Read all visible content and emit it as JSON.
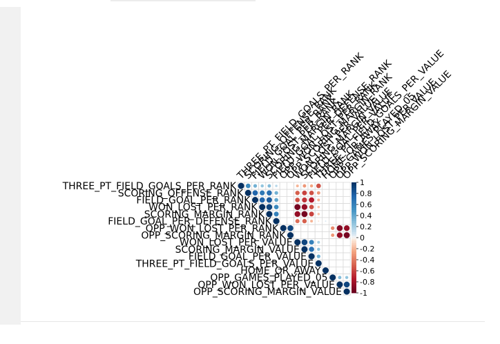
{
  "chart_data": {
    "type": "heatmap",
    "method": "circle",
    "layout": "upper-triangle",
    "variables": [
      "THREE_PT_FIELD_GOALS_PER_RANK",
      "SCORING_OFFENSE_RANK",
      "FIELD_GOAL_PER_RANK",
      "WON_LOST_PER_RANK",
      "SCORING_MARGIN_RANK",
      "FIELD_GOAL_PER_DEFENSE_RANK",
      "OPP_WON_LOST_PER_RANK",
      "OPP_SCORING_MARGIN_RANK",
      "WON_LOST_PER_VALUE",
      "SCORING_MARGIN_VALUE",
      "FIELD_GOAL_PER_VALUE",
      "THREE_PT_FIELD_GOALS_PER_VALUE",
      "HOME_OR_AWAY",
      "OPP_GAMES_PLAYED_05",
      "OPP_WON_LOST_PER_VALUE",
      "OPP_SCORING_MARGIN_VALUE"
    ],
    "matrix": [
      [
        1,
        0.55,
        0.35,
        0.25,
        0.3,
        0.15,
        0,
        0,
        -0.2,
        -0.3,
        -0.25,
        -0.55,
        0,
        0,
        0,
        0
      ],
      [
        0.55,
        1,
        0.75,
        0.65,
        0.7,
        0.35,
        0,
        0,
        -0.5,
        -0.6,
        -0.55,
        -0.3,
        0,
        0,
        0,
        0
      ],
      [
        0.35,
        0.75,
        1,
        0.75,
        0.8,
        0.4,
        0,
        0,
        -0.55,
        -0.65,
        -0.75,
        -0.2,
        0,
        0,
        0,
        0
      ],
      [
        0.25,
        0.65,
        0.75,
        1,
        0.9,
        0.55,
        0,
        0,
        -0.95,
        -0.85,
        -0.55,
        -0.15,
        0,
        0,
        0,
        0
      ],
      [
        0.3,
        0.7,
        0.8,
        0.9,
        1,
        0.6,
        0,
        0,
        -0.85,
        -0.95,
        -0.6,
        -0.15,
        0,
        0,
        0,
        0
      ],
      [
        0.15,
        0.35,
        0.4,
        0.55,
        0.6,
        1,
        0,
        0,
        -0.45,
        -0.5,
        -0.2,
        -0.05,
        0.05,
        0,
        0,
        0
      ],
      [
        0,
        0,
        0,
        0,
        0,
        0,
        1,
        0.9,
        0,
        0,
        0,
        0,
        0,
        -0.35,
        -0.9,
        -0.85
      ],
      [
        0,
        0,
        0,
        0,
        0,
        0,
        0.9,
        1,
        0,
        0,
        0,
        0,
        0,
        -0.3,
        -0.85,
        -0.95
      ],
      [
        -0.2,
        -0.5,
        -0.55,
        -0.95,
        -0.85,
        -0.45,
        0,
        0,
        1,
        0.9,
        0.6,
        0.2,
        0,
        0,
        0,
        0
      ],
      [
        -0.3,
        -0.6,
        -0.65,
        -0.85,
        -0.95,
        -0.5,
        0,
        0,
        0.9,
        1,
        0.7,
        0.25,
        0,
        0,
        0,
        0
      ],
      [
        -0.25,
        -0.55,
        -0.75,
        -0.55,
        -0.6,
        -0.2,
        0,
        0,
        0.6,
        0.7,
        1,
        0.35,
        0,
        0,
        0,
        0
      ],
      [
        -0.55,
        -0.3,
        -0.2,
        -0.15,
        -0.15,
        -0.05,
        0,
        0,
        0.2,
        0.25,
        0.35,
        1,
        0,
        0,
        0,
        0
      ],
      [
        0,
        0,
        0,
        0,
        0,
        0.05,
        0,
        0,
        0,
        0,
        0,
        0,
        1,
        0,
        0,
        0
      ],
      [
        0,
        0,
        0,
        0,
        0,
        0,
        -0.35,
        -0.3,
        0,
        0,
        0,
        0,
        0,
        1,
        0.3,
        0.25
      ],
      [
        0,
        0,
        0,
        0,
        0,
        0,
        -0.9,
        -0.85,
        0,
        0,
        0,
        0,
        0,
        0.3,
        1,
        0.9
      ],
      [
        0,
        0,
        0,
        0,
        0,
        0,
        -0.85,
        -0.95,
        0,
        0,
        0,
        0,
        0,
        0.25,
        0.9,
        1
      ]
    ],
    "colorbar": {
      "ticks": [
        "1",
        "0.8",
        "0.6",
        "0.4",
        "0.2",
        "0",
        "-0.2",
        "-0.4",
        "-0.6",
        "-0.8",
        "-1"
      ],
      "range": [
        -1,
        1
      ],
      "colors": {
        "negative": "#67001f",
        "zero": "#f7f7f7",
        "positive": "#053061"
      }
    },
    "grid": true,
    "label_color": "#000000",
    "grid_color": "#d9d9d9"
  }
}
